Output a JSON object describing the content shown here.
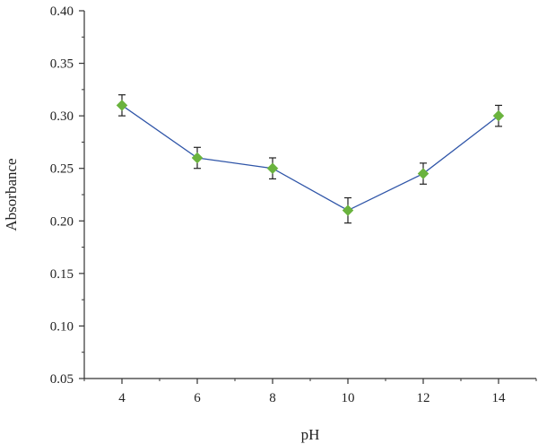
{
  "chart_data": {
    "type": "line",
    "title": "",
    "xlabel": "pH",
    "ylabel": "Absorbance",
    "xlim": [
      3,
      15
    ],
    "ylim": [
      0.05,
      0.4
    ],
    "xticks": [
      4,
      6,
      8,
      10,
      12,
      14
    ],
    "xtick_labels": [
      "4",
      "6",
      "8",
      "10",
      "12",
      "14"
    ],
    "yticks": [
      0.05,
      0.1,
      0.15,
      0.2,
      0.25,
      0.3,
      0.35,
      0.4
    ],
    "ytick_labels": [
      "0.05",
      "0.10",
      "0.15",
      "0.20",
      "0.25",
      "0.30",
      "0.35",
      "0.40"
    ],
    "grid": false,
    "legend": false,
    "series": [
      {
        "x": [
          4,
          6,
          8,
          10,
          12,
          14
        ],
        "y": [
          0.31,
          0.26,
          0.25,
          0.21,
          0.245,
          0.3
        ],
        "error": [
          0.01,
          0.01,
          0.01,
          0.012,
          0.01,
          0.01
        ],
        "marker": "diamond",
        "marker_color": "#6ab33e",
        "line_color": "#2f55a8"
      }
    ]
  }
}
